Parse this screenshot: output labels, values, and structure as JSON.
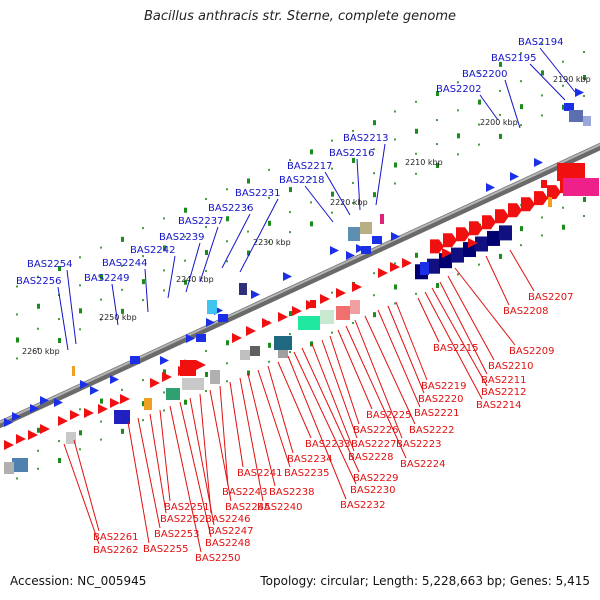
{
  "title": "Bacillus anthracis str. Sterne, complete genome",
  "footer": {
    "accession": "Accession: NC_005945",
    "topology": "Topology: circular; Length: 5,228,663 bp; Genes: 5,415"
  },
  "colors": {
    "upper_label": "#1414c8",
    "lower_label": "#e01010",
    "backbone": "#8a8a8a",
    "tick": "#1a8c1a"
  },
  "scale": [
    {
      "label": "2190 kbp"
    },
    {
      "label": "2200 kbp"
    },
    {
      "label": "2210 kbp"
    },
    {
      "label": "2220 kbp"
    },
    {
      "label": "2230 kbp"
    },
    {
      "label": "2240 kbp"
    },
    {
      "label": "2250 kbp"
    },
    {
      "label": "2260 kbp"
    }
  ],
  "upper_genes": [
    {
      "name": "BAS2194"
    },
    {
      "name": "BAS2195"
    },
    {
      "name": "BAS2200"
    },
    {
      "name": "BAS2202"
    },
    {
      "name": "BAS2213"
    },
    {
      "name": "BAS2216"
    },
    {
      "name": "BAS2217"
    },
    {
      "name": "BAS2218"
    },
    {
      "name": "BAS2231"
    },
    {
      "name": "BAS2236"
    },
    {
      "name": "BAS2237"
    },
    {
      "name": "BAS2239"
    },
    {
      "name": "BAS2242"
    },
    {
      "name": "BAS2244"
    },
    {
      "name": "BAS2249"
    },
    {
      "name": "BAS2254"
    },
    {
      "name": "BAS2256"
    }
  ],
  "lower_genes": [
    {
      "name": "BAS2207"
    },
    {
      "name": "BAS2208"
    },
    {
      "name": "BAS2209"
    },
    {
      "name": "BAS2210"
    },
    {
      "name": "BAS2211"
    },
    {
      "name": "BAS2212"
    },
    {
      "name": "BAS2214"
    },
    {
      "name": "BAS2215"
    },
    {
      "name": "BAS2219"
    },
    {
      "name": "BAS2220"
    },
    {
      "name": "BAS2221"
    },
    {
      "name": "BAS2222"
    },
    {
      "name": "BAS2223"
    },
    {
      "name": "BAS2224"
    },
    {
      "name": "BAS2225"
    },
    {
      "name": "BAS2226"
    },
    {
      "name": "BAS2227"
    },
    {
      "name": "BAS2228"
    },
    {
      "name": "BAS2229"
    },
    {
      "name": "BAS2230"
    },
    {
      "name": "BAS2232"
    },
    {
      "name": "BAS2233"
    },
    {
      "name": "BAS2234"
    },
    {
      "name": "BAS2235"
    },
    {
      "name": "BAS2238"
    },
    {
      "name": "BAS2240"
    },
    {
      "name": "BAS2241"
    },
    {
      "name": "BAS2243"
    },
    {
      "name": "BAS2245"
    },
    {
      "name": "BAS2246"
    },
    {
      "name": "BAS2247"
    },
    {
      "name": "BAS2248"
    },
    {
      "name": "BAS2250"
    },
    {
      "name": "BAS2251"
    },
    {
      "name": "BAS2252"
    },
    {
      "name": "BAS2253"
    },
    {
      "name": "BAS2255"
    },
    {
      "name": "BAS2261"
    },
    {
      "name": "BAS2262"
    }
  ]
}
